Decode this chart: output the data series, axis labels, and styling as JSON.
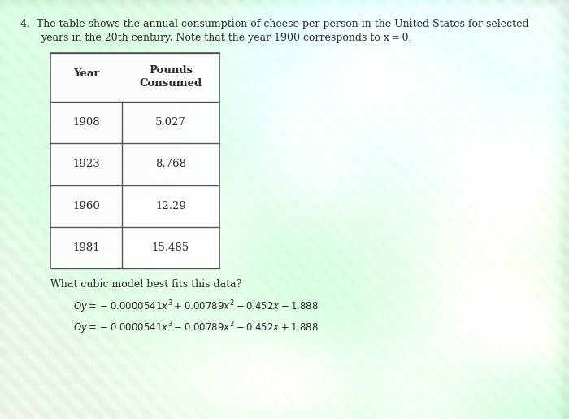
{
  "title_number": "4.",
  "title_text_line1": "The table shows the annual consumption of cheese per person in the United States for selected",
  "title_text_line2": "years in the 20th century. Note that the year 1900 corresponds to x = 0.",
  "col1_header": "Year",
  "col2_header_line1": "Pounds",
  "col2_header_line2": "Consumed",
  "table_years": [
    "1908",
    "1923",
    "1960",
    "1981"
  ],
  "table_pounds": [
    "5.027",
    "8.768",
    "12.29",
    "15.485"
  ],
  "question": "What cubic model best fits this data?",
  "eq1": "Oy = −0.0000541x³ + 0.00789x² − 0.452x − 1.888",
  "eq2": "Oy = −0.0000541x³ − 0.00789x² − 0.452x + 1.888",
  "bg_base": "#c8cfc0",
  "table_border_color": "#555555",
  "text_color": "#2a2a2a",
  "font_size_title": 9.0,
  "font_size_table": 9.5,
  "font_size_eq": 8.5
}
